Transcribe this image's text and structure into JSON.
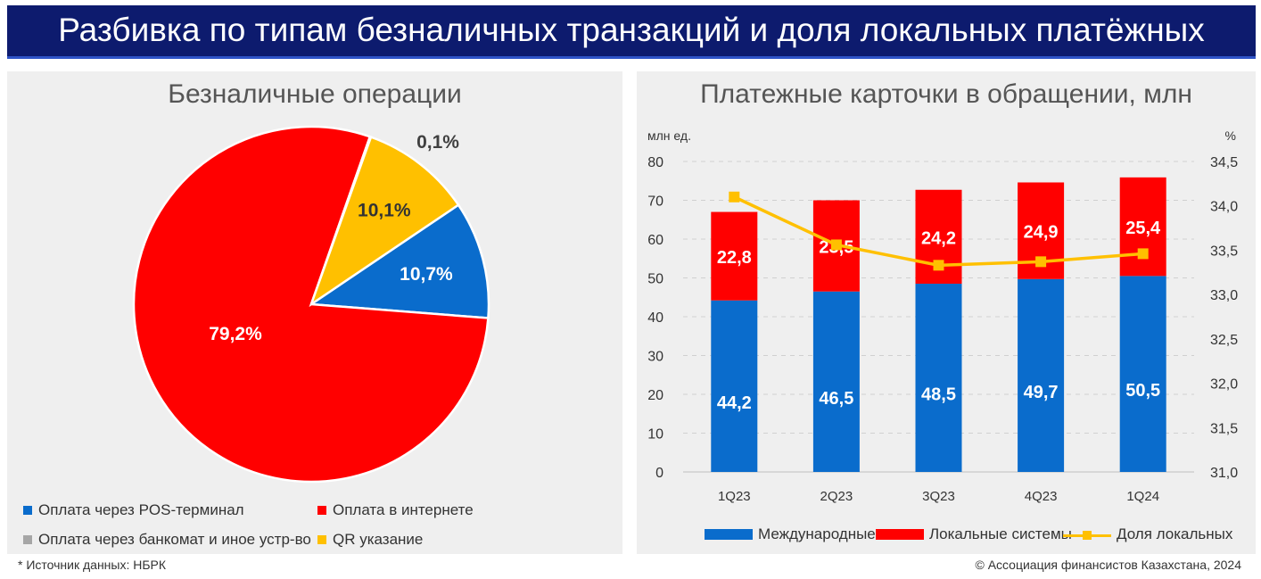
{
  "page": {
    "title": "Разбивка по типам безналичных транзакций и доля локальных платёжных систем*",
    "footnote_left": "* Источник данных: НБРК",
    "footnote_right": "© Ассоциация финансистов Казахстана, 2024"
  },
  "colors": {
    "blue": "#0a6ccc",
    "red": "#ff0000",
    "yellow": "#ffc000",
    "gray": "#a6a6a6"
  },
  "chart_data": [
    {
      "type": "pie",
      "title": "Безналичные операции",
      "slices": [
        {
          "label": "Оплата через POS-терминал",
          "value": 10.7,
          "display": "10,7%",
          "color": "#0a6ccc"
        },
        {
          "label": "Оплата в интернете",
          "value": 79.2,
          "display": "79,2%",
          "color": "#ff0000"
        },
        {
          "label": "Оплата через банкомат и иное устр-во",
          "value": 0.1,
          "display": "0,1%",
          "color": "#a6a6a6"
        },
        {
          "label": "QR указание",
          "value": 10.1,
          "display": "10,1%",
          "color": "#ffc000"
        }
      ],
      "legend": [
        "Оплата через POS-терминал",
        "Оплата в интернете",
        "Оплата через банкомат и иное устр-во",
        "QR указание"
      ]
    },
    {
      "type": "bar",
      "stacked": true,
      "title": "Платежные карточки в обращении, млн",
      "ylabel_left": "млн ед.",
      "ylabel_right": "%",
      "categories": [
        "1Q23",
        "2Q23",
        "3Q23",
        "4Q23",
        "1Q24"
      ],
      "ylim": [
        0,
        80
      ],
      "yticks": [
        0,
        10,
        20,
        30,
        40,
        50,
        60,
        70,
        80
      ],
      "y2lim": [
        31.0,
        34.5
      ],
      "y2ticks": [
        "31,0",
        "31,5",
        "32,0",
        "32,5",
        "33,0",
        "33,5",
        "34,0",
        "34,5"
      ],
      "series": [
        {
          "name": "Международные",
          "values": [
            44.2,
            46.5,
            48.5,
            49.7,
            50.5
          ],
          "labels": [
            "44,2",
            "46,5",
            "48,5",
            "49,7",
            "50,5"
          ],
          "color": "#0a6ccc"
        },
        {
          "name": "Локальные системы",
          "values": [
            22.8,
            23.5,
            24.2,
            24.9,
            25.4
          ],
          "labels": [
            "22,8",
            "23,5",
            "24,2",
            "24,9",
            "25,4"
          ],
          "color": "#ff0000"
        }
      ],
      "line": {
        "name": "Доля локальных",
        "values": [
          34.1,
          33.56,
          33.33,
          33.37,
          33.46
        ],
        "color": "#ffc000",
        "axis": "right"
      },
      "legend": [
        "Международные",
        "Локальные системы",
        "Доля локальных"
      ]
    }
  ]
}
